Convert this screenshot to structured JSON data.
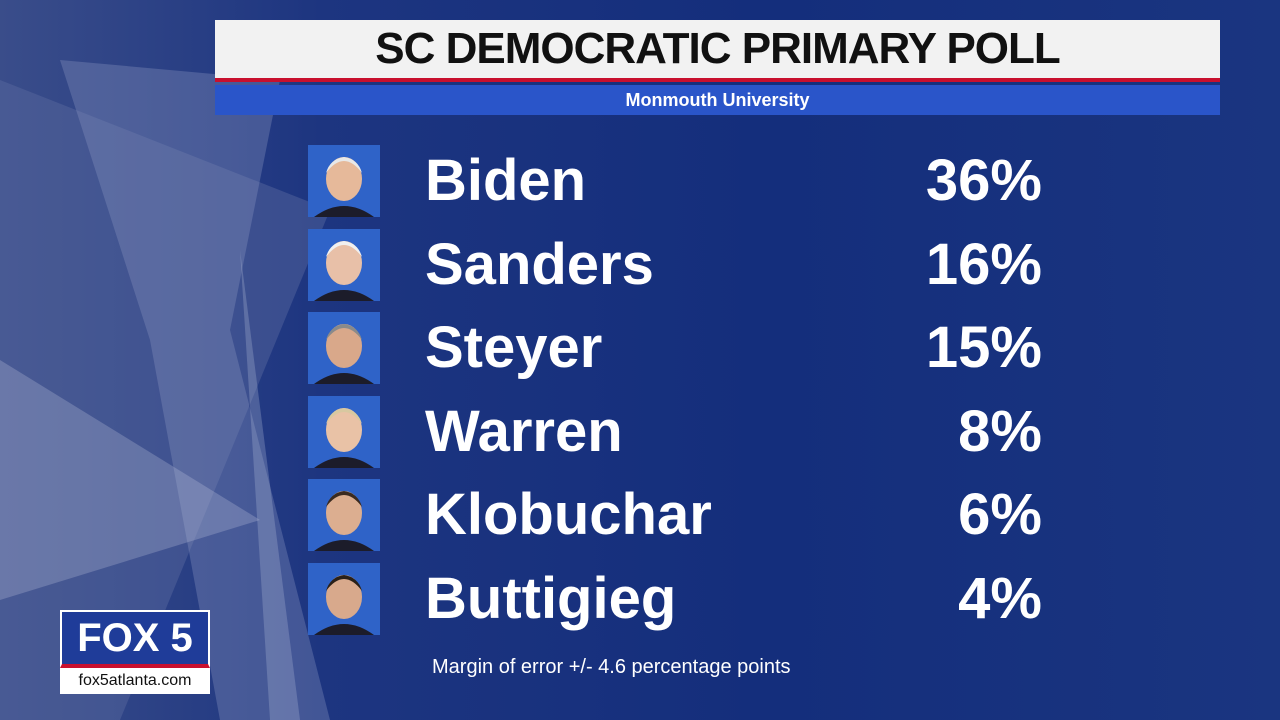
{
  "header": {
    "title": "SC DEMOCRATIC PRIMARY POLL",
    "source": "Monmouth University"
  },
  "rows": [
    {
      "name": "Biden",
      "value": "36%"
    },
    {
      "name": "Sanders",
      "value": "16%"
    },
    {
      "name": "Steyer",
      "value": "15%"
    },
    {
      "name": "Warren",
      "value": "8%"
    },
    {
      "name": "Klobuchar",
      "value": "6%"
    },
    {
      "name": "Buttigieg",
      "value": "4%"
    }
  ],
  "footnote": "Margin of error +/- 4.6  percentage points",
  "logo": {
    "brand": "FOX 5",
    "site": "fox5atlanta.com"
  }
}
